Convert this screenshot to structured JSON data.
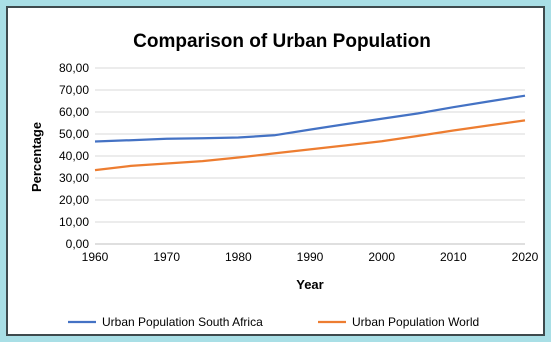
{
  "chart_data": {
    "type": "line",
    "title": "Comparison of Urban Population",
    "xlabel": "Year",
    "ylabel": "Percentage",
    "xlim": [
      1960,
      2020
    ],
    "ylim": [
      0,
      80
    ],
    "x_ticks": [
      "1960",
      "1970",
      "1980",
      "1990",
      "2000",
      "2010",
      "2020"
    ],
    "y_ticks": [
      "0,00",
      "10,00",
      "20,00",
      "30,00",
      "40,00",
      "50,00",
      "60,00",
      "70,00",
      "80,00"
    ],
    "grid": "horizontal",
    "legend_position": "bottom",
    "x": [
      1960,
      1965,
      1970,
      1975,
      1980,
      1985,
      1990,
      1995,
      2000,
      2005,
      2010,
      2015,
      2020
    ],
    "series": [
      {
        "name": "Urban Population South Africa",
        "color": "#4472c4",
        "values": [
          46.6,
          47.2,
          47.8,
          48.1,
          48.4,
          49.4,
          52.0,
          54.5,
          56.9,
          59.3,
          62.2,
          64.8,
          67.4
        ]
      },
      {
        "name": "Urban Population World",
        "color": "#ed7d31",
        "values": [
          33.6,
          35.5,
          36.6,
          37.7,
          39.3,
          41.2,
          43.0,
          44.8,
          46.7,
          49.1,
          51.6,
          53.9,
          56.2
        ]
      }
    ]
  }
}
